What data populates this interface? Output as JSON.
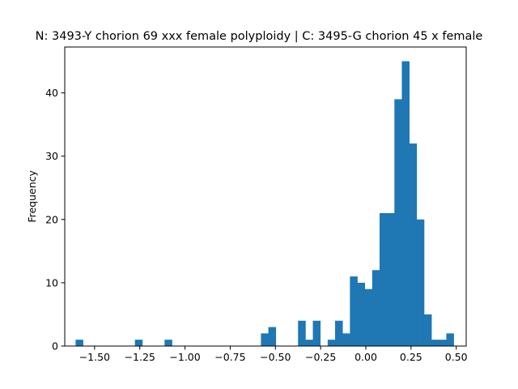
{
  "chart_data": {
    "type": "bar",
    "title": "N: 3493-Y chorion 69 xxx female polyploidy | C: 3495-G chorion 45 x female",
    "xlabel": "",
    "ylabel": "Frequency",
    "xlim": [
      -1.665,
      0.555
    ],
    "ylim": [
      0,
      47.25
    ],
    "x_ticks": [
      -1.5,
      -1.25,
      -1.0,
      -0.75,
      -0.5,
      -0.25,
      0.0,
      0.25,
      0.5
    ],
    "x_tick_labels": [
      "−1.50",
      "−1.25",
      "−1.00",
      "−0.75",
      "−0.50",
      "−0.25",
      "0.00",
      "0.25",
      "0.50"
    ],
    "y_ticks": [
      0,
      10,
      20,
      30,
      40
    ],
    "y_tick_labels": [
      "0",
      "10",
      "20",
      "30",
      "40"
    ],
    "bin_edges": [
      -1.605,
      -1.564,
      -1.523,
      -1.482,
      -1.441,
      -1.4,
      -1.359,
      -1.318,
      -1.277,
      -1.236,
      -1.195,
      -1.154,
      -1.113,
      -1.072,
      -1.031,
      -0.99,
      -0.949,
      -0.908,
      -0.867,
      -0.826,
      -0.785,
      -0.744,
      -0.703,
      -0.662,
      -0.621,
      -0.58,
      -0.539,
      -0.498,
      -0.457,
      -0.416,
      -0.375,
      -0.334,
      -0.293,
      -0.252,
      -0.211,
      -0.17,
      -0.129,
      -0.088,
      -0.047,
      -0.006,
      0.035,
      0.076,
      0.117,
      0.158,
      0.199,
      0.24,
      0.281,
      0.322,
      0.363,
      0.404,
      0.445,
      0.486
    ],
    "values": [
      1,
      0,
      0,
      0,
      0,
      0,
      0,
      0,
      1,
      0,
      0,
      0,
      1,
      0,
      0,
      0,
      0,
      0,
      0,
      0,
      0,
      0,
      0,
      0,
      0,
      2,
      3,
      0,
      0,
      0,
      4,
      1,
      4,
      0,
      1,
      4,
      2,
      11,
      10,
      9,
      12,
      21,
      21,
      39,
      45,
      32,
      20,
      5,
      1,
      1,
      2
    ],
    "grid": false,
    "legend": "none",
    "colors": {
      "bar": "#1f77b4",
      "axes": "#000000",
      "background": "#ffffff"
    }
  }
}
